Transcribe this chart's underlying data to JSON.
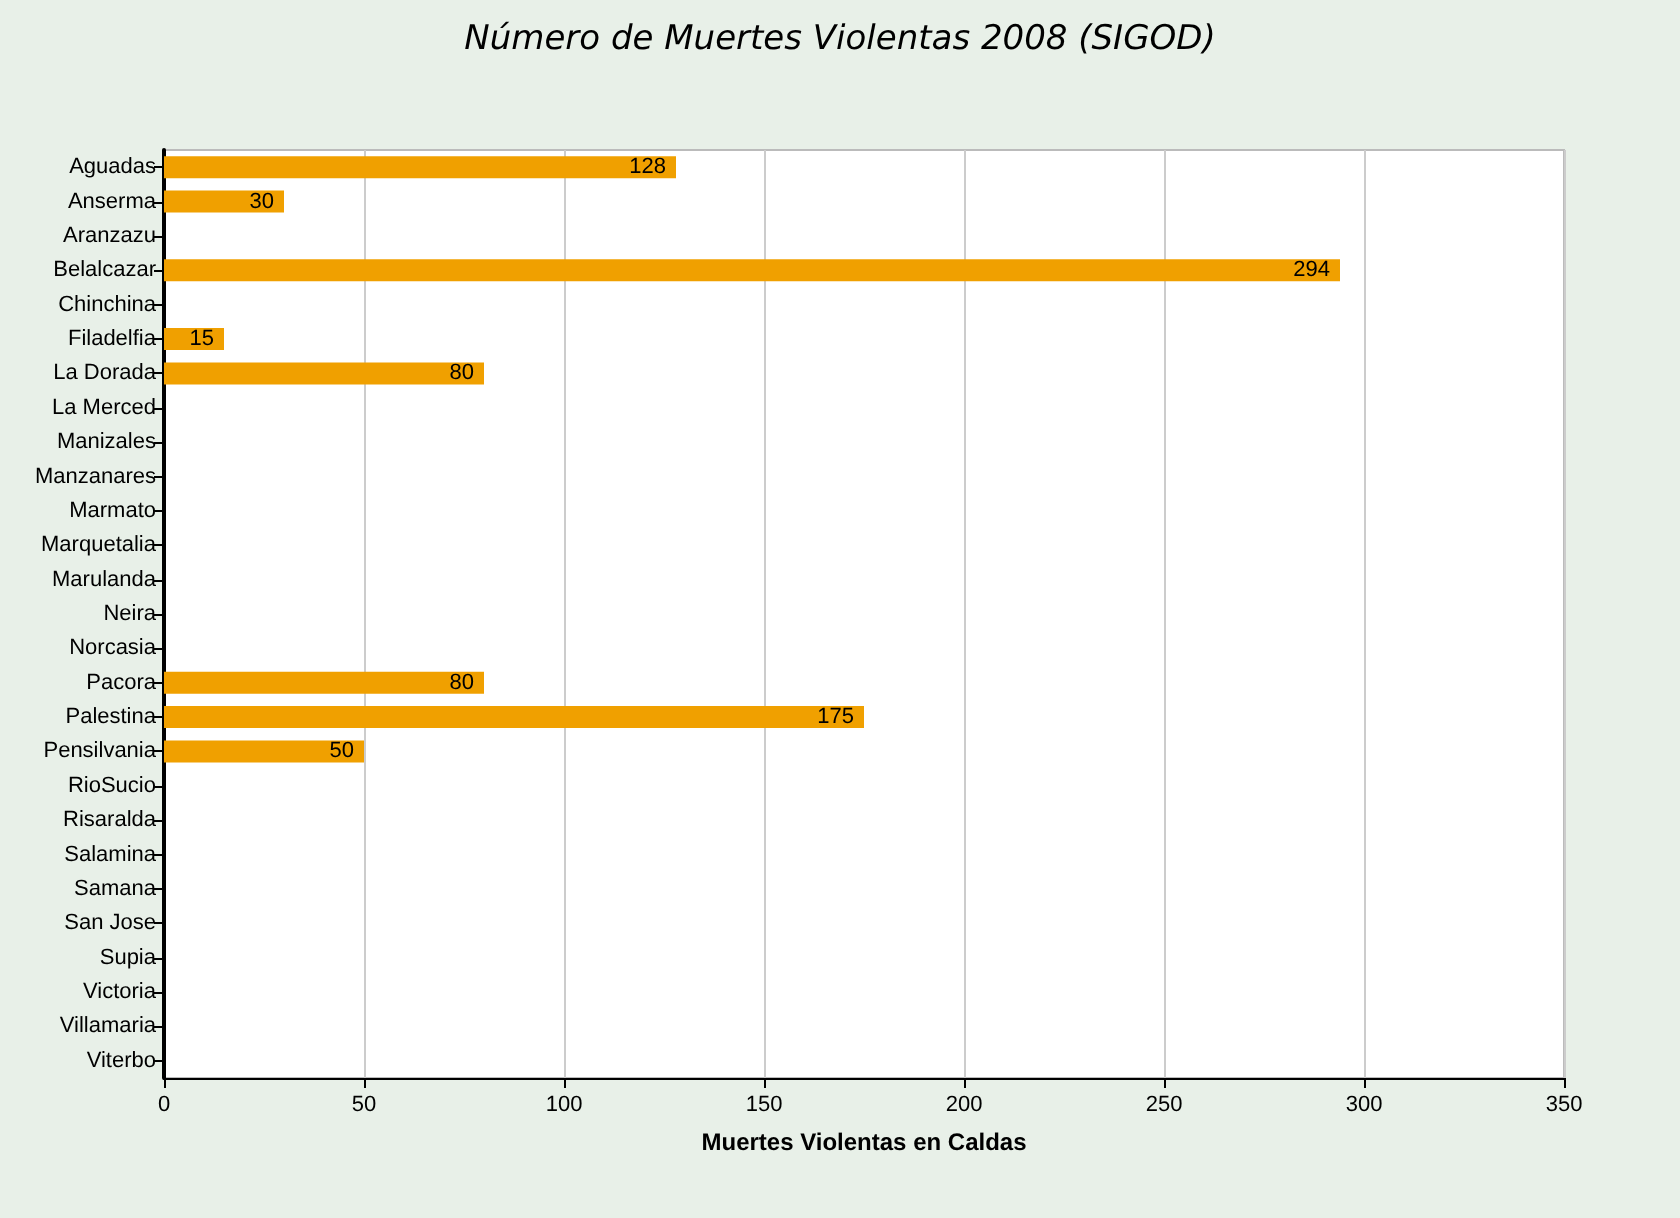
{
  "chart_data": {
    "type": "bar",
    "orientation": "horizontal",
    "title": "Número de Muertes Violentas 2008 (SIGOD)",
    "xlabel": "Muertes Violentas en Caldas",
    "categories": [
      "Aguadas",
      "Anserma",
      "Aranzazu",
      "Belalcazar",
      "Chinchina",
      "Filadelfia",
      "La Dorada",
      "La Merced",
      "Manizales",
      "Manzanares",
      "Marmato",
      "Marquetalia",
      "Marulanda",
      "Neira",
      "Norcasia",
      "Pacora",
      "Palestina",
      "Pensilvania",
      "RioSucio",
      "Risaralda",
      "Salamina",
      "Samana",
      "San Jose",
      "Supia",
      "Victoria",
      "Villamaria",
      "Viterbo"
    ],
    "values": [
      128,
      30,
      0,
      294,
      0,
      15,
      80,
      0,
      0,
      0,
      0,
      0,
      0,
      0,
      0,
      80,
      175,
      50,
      0,
      0,
      0,
      0,
      0,
      0,
      0,
      0,
      0
    ],
    "value_labels": [
      "128",
      "30",
      null,
      "294",
      null,
      "15",
      "80",
      null,
      null,
      null,
      null,
      null,
      null,
      null,
      null,
      "80",
      "175",
      "50",
      null,
      null,
      null,
      null,
      null,
      null,
      null,
      null,
      null
    ],
    "color": "#f0a000",
    "xlim": [
      0,
      350
    ],
    "xticks": [
      0,
      50,
      100,
      150,
      200,
      250,
      300,
      350
    ],
    "grid": "x"
  }
}
